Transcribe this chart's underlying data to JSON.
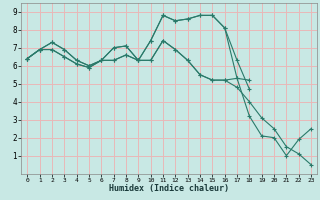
{
  "xlabel": "Humidex (Indice chaleur)",
  "xlim": [
    -0.5,
    23.5
  ],
  "ylim": [
    0,
    9.5
  ],
  "xticks": [
    0,
    1,
    2,
    3,
    4,
    5,
    6,
    7,
    8,
    9,
    10,
    11,
    12,
    13,
    14,
    15,
    16,
    17,
    18,
    19,
    20,
    21,
    22,
    23
  ],
  "yticks": [
    1,
    2,
    3,
    4,
    5,
    6,
    7,
    8,
    9
  ],
  "line_color": "#2a7a6a",
  "bg_color": "#c8e8e4",
  "grid_color": "#e8b8b8",
  "series": [
    {
      "x": [
        0,
        1,
        2,
        3,
        4,
        5,
        6,
        7,
        8,
        9,
        10,
        11,
        12,
        13,
        14,
        15,
        16,
        17,
        18
      ],
      "y": [
        6.4,
        6.9,
        7.3,
        6.9,
        6.3,
        6.0,
        6.3,
        7.0,
        7.1,
        6.3,
        7.4,
        8.8,
        8.5,
        8.6,
        8.8,
        8.8,
        8.1,
        6.3,
        4.7
      ]
    },
    {
      "x": [
        0,
        1,
        2,
        3,
        4,
        5,
        6,
        7,
        8,
        9,
        10,
        11,
        12,
        13,
        14,
        15,
        16,
        17,
        18
      ],
      "y": [
        6.4,
        6.9,
        6.9,
        6.5,
        6.1,
        5.9,
        6.3,
        6.3,
        6.6,
        6.3,
        6.3,
        7.4,
        6.9,
        6.3,
        5.5,
        5.2,
        5.2,
        5.3,
        5.2
      ]
    },
    {
      "x": [
        0,
        1,
        2,
        3,
        4,
        5,
        6,
        7,
        8,
        9,
        10,
        11,
        12,
        13,
        14,
        15,
        16,
        17,
        18,
        19,
        20,
        21,
        22,
        23
      ],
      "y": [
        6.4,
        6.9,
        7.3,
        6.9,
        6.3,
        6.0,
        6.3,
        7.0,
        7.1,
        6.3,
        7.4,
        8.8,
        8.5,
        8.6,
        8.8,
        8.8,
        8.1,
        5.3,
        3.2,
        2.1,
        2.0,
        1.0,
        1.9,
        2.5
      ]
    },
    {
      "x": [
        0,
        1,
        2,
        3,
        4,
        5,
        6,
        7,
        8,
        9,
        10,
        11,
        12,
        13,
        14,
        15,
        16,
        17,
        18,
        19,
        20,
        21,
        22,
        23
      ],
      "y": [
        6.4,
        6.9,
        6.9,
        6.5,
        6.1,
        5.9,
        6.3,
        6.3,
        6.6,
        6.3,
        6.3,
        7.4,
        6.9,
        6.3,
        5.5,
        5.2,
        5.2,
        4.8,
        4.0,
        3.1,
        2.5,
        1.5,
        1.1,
        0.5
      ]
    }
  ]
}
